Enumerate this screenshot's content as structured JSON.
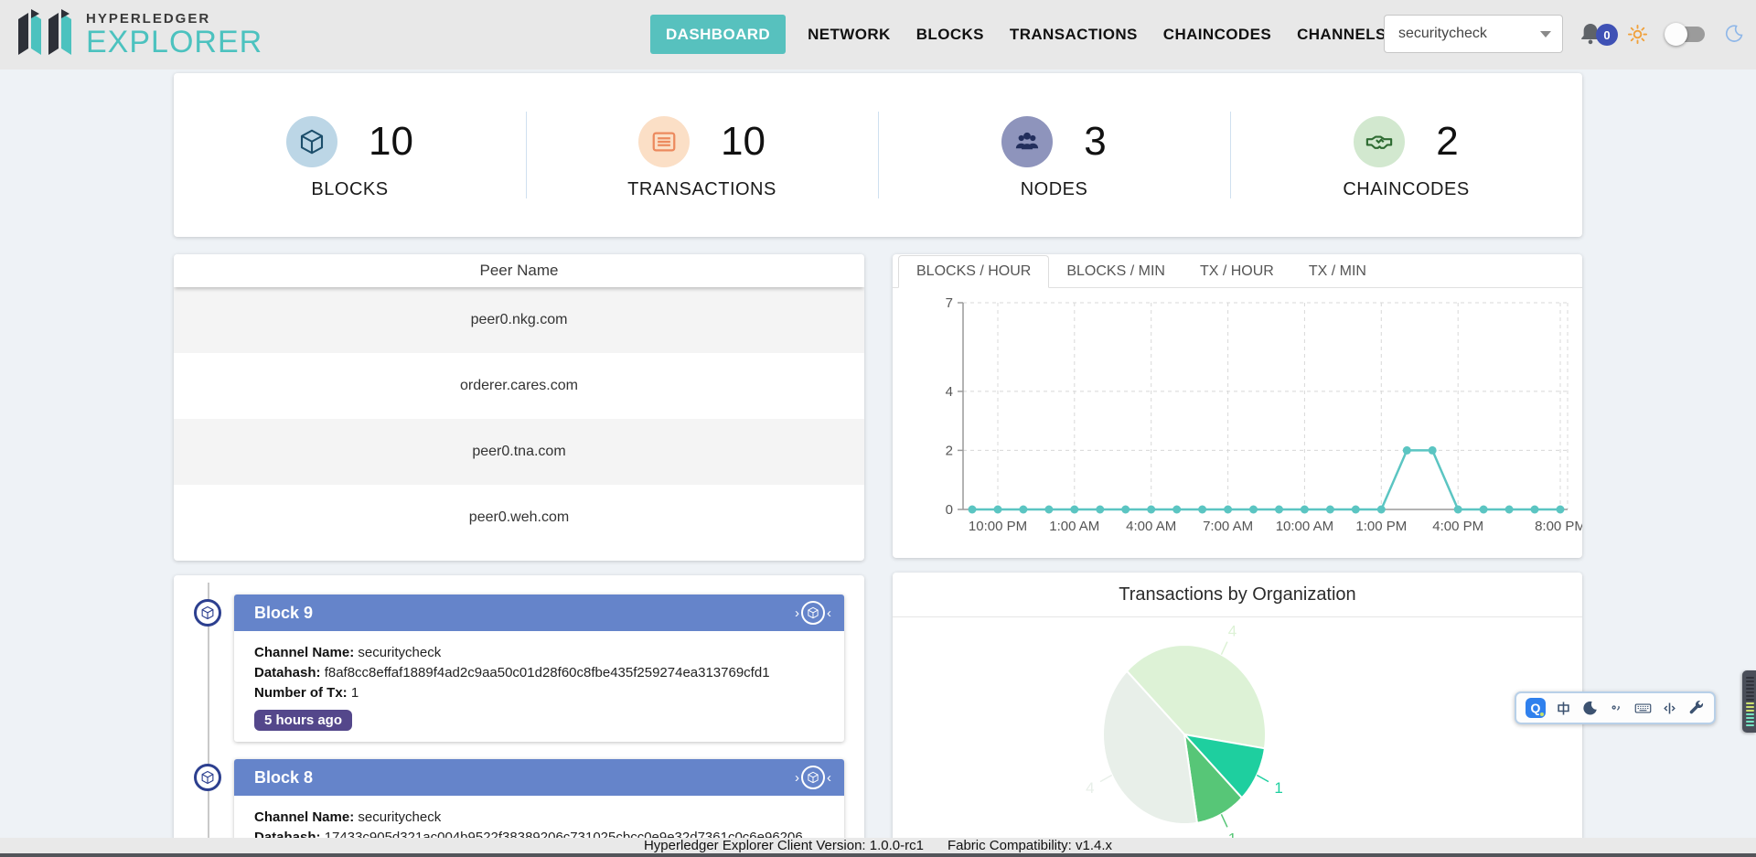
{
  "header": {
    "logo_top": "HYPERLEDGER",
    "logo_bottom": "EXPLORER",
    "nav_items": [
      {
        "label": "DASHBOARD",
        "active": true
      },
      {
        "label": "NETWORK",
        "active": false
      },
      {
        "label": "BLOCKS",
        "active": false
      },
      {
        "label": "TRANSACTIONS",
        "active": false
      },
      {
        "label": "CHAINCODES",
        "active": false
      },
      {
        "label": "CHANNELS",
        "active": false
      }
    ],
    "channel_select": {
      "value": "securitycheck"
    },
    "notification_count": "0",
    "accent_color": "#57c1be"
  },
  "stats": {
    "items": [
      {
        "label": "BLOCKS",
        "value": "10",
        "icon": "cube-icon",
        "circle_color": "#bcd6e6",
        "icon_color": "#1c4e6b"
      },
      {
        "label": "TRANSACTIONS",
        "value": "10",
        "icon": "list-icon",
        "circle_color": "#fbdfc6",
        "icon_color": "#ec8a5e"
      },
      {
        "label": "NODES",
        "value": "3",
        "icon": "users-icon",
        "circle_color": "#8e94bc",
        "icon_color": "#222e5c"
      },
      {
        "label": "CHAINCODES",
        "value": "2",
        "icon": "handshake-icon",
        "circle_color": "#d2e8cf",
        "icon_color": "#2e6b32"
      }
    ]
  },
  "peer_table": {
    "header": "Peer Name",
    "rows": [
      "peer0.nkg.com",
      "orderer.cares.com",
      "peer0.tna.com",
      "peer0.weh.com"
    ]
  },
  "metrics_panel": {
    "tabs": [
      {
        "label": "BLOCKS / HOUR",
        "active": true
      },
      {
        "label": "BLOCKS / MIN",
        "active": false
      },
      {
        "label": "TX / HOUR",
        "active": false
      },
      {
        "label": "TX / MIN",
        "active": false
      }
    ],
    "chart_data": {
      "type": "line",
      "series_color": "#5bc5c2",
      "x": [
        "9:00 PM",
        "10:00 PM",
        "11:00 PM",
        "12:00 AM",
        "1:00 AM",
        "2:00 AM",
        "3:00 AM",
        "4:00 AM",
        "5:00 AM",
        "6:00 AM",
        "7:00 AM",
        "8:00 AM",
        "9:00 AM",
        "10:00 AM",
        "11:00 AM",
        "12:00 PM",
        "1:00 PM",
        "2:00 PM",
        "3:00 PM",
        "4:00 PM",
        "5:00 PM",
        "6:00 PM",
        "7:00 PM",
        "8:00 PM"
      ],
      "values": [
        0,
        0,
        0,
        0,
        0,
        0,
        0,
        0,
        0,
        0,
        0,
        0,
        0,
        0,
        0,
        0,
        0,
        2,
        2,
        0,
        0,
        0,
        0,
        0
      ],
      "x_tick_indices": [
        1,
        4,
        7,
        10,
        13,
        16,
        19,
        23
      ],
      "x_tick_labels": [
        "10:00 PM",
        "1:00 AM",
        "4:00 AM",
        "7:00 AM",
        "10:00 AM",
        "1:00 PM",
        "4:00 PM",
        "8:00 PM"
      ],
      "y_ticks": [
        0,
        2,
        4,
        7
      ],
      "ylim": [
        0,
        7
      ],
      "grid": "dashed"
    }
  },
  "blocks_feed": {
    "labels": {
      "channel": "Channel Name:",
      "datahash": "Datahash:",
      "numtx": "Number of Tx:"
    },
    "blocks": [
      {
        "title": "Block 9",
        "channel": "securitycheck",
        "datahash": "f8af8cc8effaf1889f4ad2c9aa50c01d28f60c8fbe435f259274ea313769cfd1",
        "numtx": "1",
        "age": "5 hours ago"
      },
      {
        "title": "Block 8",
        "channel": "securitycheck",
        "datahash": "17433c905d321ac004b9522f38389206c731025cbcc0e9e32d7361c0c6e96206"
      }
    ]
  },
  "org_panel": {
    "title": "Transactions by Organization",
    "chart_data": {
      "type": "pie",
      "start_angle_deg": -45,
      "direction": "clockwise",
      "slices": [
        {
          "label": "4",
          "value": 4,
          "color": "#ddf2d6"
        },
        {
          "label": "1",
          "value": 1,
          "color": "#1ecf9f"
        },
        {
          "label": "1",
          "value": 1,
          "color": "#57c677"
        },
        {
          "label": "4",
          "value": 4,
          "color": "#e8efe9"
        }
      ]
    }
  },
  "footer": {
    "client_version": "Hyperledger Explorer Client Version: 1.0.0-rc1",
    "fabric_compat": "Fabric Compatibility: v1.4.x"
  },
  "extension_toolbar": {
    "q_label": "Q",
    "icons": [
      "translate-q-icon",
      "zh-icon",
      "moon-icon",
      "quotes-icon",
      "keyboard-icon",
      "text-cursor-icon",
      "wrench-icon"
    ]
  }
}
